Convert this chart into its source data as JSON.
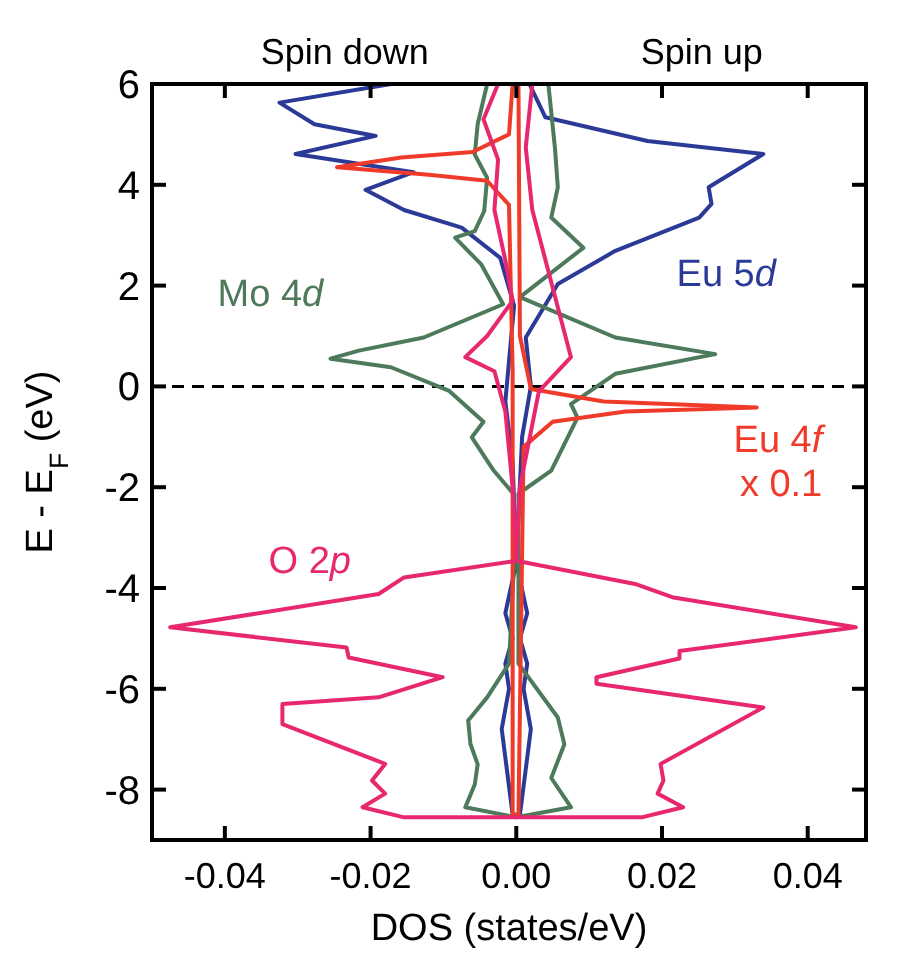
{
  "chart_data": {
    "type": "line",
    "xlabel": "DOS (states/eV)",
    "ylabel": "E - E$_{F}$ (eV)",
    "xlim": [
      -0.05,
      0.048
    ],
    "ylim": [
      -9,
      6
    ],
    "xticks": [
      {
        "value": -0.04,
        "label": "-0.04"
      },
      {
        "value": -0.02,
        "label": "-0.02"
      },
      {
        "value": 0,
        "label": "0.00"
      },
      {
        "value": 0.02,
        "label": "0.02"
      },
      {
        "value": 0.04,
        "label": "0.04"
      }
    ],
    "yticks": [
      -8,
      -6,
      -4,
      -2,
      0,
      2,
      4,
      6
    ],
    "marker": "none",
    "line_style": "solid",
    "annotations": [
      "Spin down",
      "Spin up"
    ],
    "ref_lines": [
      {
        "axis": "y",
        "value": 0,
        "color": "#000000",
        "line_style": "dashed"
      }
    ],
    "series": [
      {
        "name": "Eu 5d",
        "color": "#2b3a97",
        "x": [
          -0.0172,
          -0.0325,
          -0.0277,
          -0.0193,
          -0.0303,
          -0.0141,
          -0.0207,
          -0.0154,
          -0.0075,
          -0.0022,
          -0.0003,
          -0.001,
          -0.0015,
          -0.0005,
          0,
          -0.0015,
          -0.0005,
          -0.0015,
          -0.001,
          -0.002,
          -0.0005,
          0.0005,
          0.002,
          0.001,
          0.0015,
          0.0005,
          0.0015,
          0,
          0.0008,
          0.002,
          0.0013,
          0.0057,
          0.0136,
          0.0251,
          0.0268,
          0.0264,
          0.0339,
          0.018,
          0.004,
          0.0018
        ],
        "values": [
          6,
          5.63,
          5.2,
          4.97,
          4.61,
          4.25,
          3.9,
          3.5,
          3.15,
          2.55,
          1.6,
          0.5,
          -0.3,
          -1.5,
          -3.5,
          -4.5,
          -5,
          -5.5,
          -6,
          -6.8,
          -8.5,
          -8.5,
          -6.8,
          -6,
          -5.5,
          -5,
          -4.5,
          -3.5,
          -1,
          0,
          0.97,
          2.03,
          2.69,
          3.35,
          3.62,
          3.95,
          4.61,
          4.87,
          5.34,
          6
        ]
      },
      {
        "name": "Mo 4d",
        "color": "#4d7a5a",
        "x": [
          -0.004,
          -0.0053,
          -0.0057,
          -0.004,
          -0.0044,
          -0.0057,
          -0.0084,
          -0.0048,
          -0.0018,
          -0.0127,
          -0.0216,
          -0.0255,
          -0.0172,
          -0.0092,
          -0.0045,
          -0.0061,
          -0.0031,
          -0.0004,
          -0.0003,
          -0.001,
          -0.004,
          -0.0066,
          -0.0063,
          -0.0053,
          -0.0057,
          -0.007,
          0,
          0.0075,
          0.0048,
          0.0066,
          0.0057,
          0.0003,
          0.0003,
          0.0048,
          0.0084,
          0.0075,
          0.0136,
          0.0273,
          0.0136,
          0.0005,
          0.0092,
          0.0048,
          0.0057,
          0.0053,
          0.0044
        ],
        "values": [
          6,
          5.2,
          4.6,
          4.14,
          3.48,
          3.08,
          2.95,
          2.42,
          1.63,
          0.97,
          0.71,
          0.55,
          0.38,
          -0.09,
          -0.7,
          -1.01,
          -1.67,
          -2.13,
          -3.5,
          -5.5,
          -6.17,
          -6.63,
          -7.09,
          -7.5,
          -7.9,
          -8.35,
          -8.55,
          -8.35,
          -7.77,
          -7.1,
          -6.57,
          -5.5,
          -2.13,
          -1.67,
          -0.62,
          -0.35,
          0.25,
          0.64,
          0.97,
          1.77,
          2.75,
          3.35,
          3.95,
          4.74,
          6
        ]
      },
      {
        "name": "Eu 4f\nx 0.1",
        "color": "#f03a2a",
        "x": [
          -0.0005,
          -0.001,
          -0.006,
          -0.0158,
          -0.0246,
          -0.012,
          -0.004,
          -0.001,
          -0.0005,
          -0.0005,
          0.0003,
          0.001,
          0.005,
          0.015,
          0.033,
          0.012,
          0.002,
          0.0005,
          0.0003
        ],
        "values": [
          6,
          5,
          4.65,
          4.54,
          4.35,
          4.2,
          4.08,
          3.6,
          0.3,
          -8.5,
          -8.5,
          -1.2,
          -0.7,
          -0.5,
          -0.42,
          -0.3,
          -0.05,
          1,
          6
        ]
      },
      {
        "name": "O 2p",
        "color": "#e8286e",
        "x": [
          -0.0025,
          -0.0045,
          -0.0025,
          -0.003,
          -0.0015,
          -0.0005,
          -0.004,
          -0.007,
          -0.003,
          -0.0015,
          -0.0005,
          0,
          -0.0154,
          -0.0189,
          -0.0475,
          -0.0233,
          -0.023,
          -0.0101,
          -0.0189,
          -0.0321,
          -0.0321,
          -0.018,
          -0.0198,
          -0.018,
          -0.0211,
          -0.0154,
          0,
          0.0172,
          0.0229,
          0.0194,
          0.0202,
          0.0198,
          0.0339,
          0.011,
          0.011,
          0.0224,
          0.0224,
          0.0466,
          0.0216,
          0.0163,
          0,
          0.0005,
          0.0031,
          0.0075,
          0.0022,
          0.0013,
          0.0022
        ],
        "values": [
          6,
          5.3,
          4.5,
          3.5,
          2.5,
          1.7,
          1,
          0.58,
          0.3,
          -0.5,
          -2,
          -3.46,
          -3.79,
          -4.12,
          -4.78,
          -5.18,
          -5.38,
          -5.77,
          -6.17,
          -6.3,
          -6.7,
          -7.49,
          -7.82,
          -8.08,
          -8.35,
          -8.55,
          -8.55,
          -8.55,
          -8.35,
          -8.08,
          -7.82,
          -7.49,
          -6.37,
          -5.9,
          -5.77,
          -5.4,
          -5.25,
          -4.78,
          -4.19,
          -3.92,
          -3.46,
          -2,
          -0.1,
          0.58,
          3.5,
          4.74,
          6
        ]
      }
    ]
  }
}
